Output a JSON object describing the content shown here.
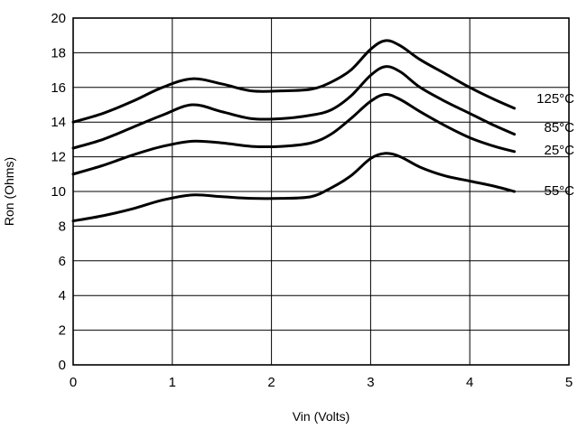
{
  "chart_data": {
    "type": "line",
    "title": "",
    "xlabel": "Vin (Volts)",
    "ylabel": "Ron (Ohms)",
    "xlim": [
      0,
      5
    ],
    "ylim": [
      0,
      20
    ],
    "xticks": [
      "0",
      "1",
      "2",
      "3",
      "4",
      "5"
    ],
    "yticks": [
      "0",
      "2",
      "4",
      "6",
      "8",
      "10",
      "12",
      "14",
      "16",
      "18",
      "20"
    ],
    "grid": true,
    "series": [
      {
        "name": "125°C",
        "x": [
          0,
          0.3,
          0.6,
          0.9,
          1.2,
          1.5,
          1.8,
          2.1,
          2.4,
          2.6,
          2.8,
          3.0,
          3.15,
          3.3,
          3.5,
          3.75,
          4.0,
          4.25,
          4.45
        ],
        "y": [
          14.0,
          14.5,
          15.2,
          16.0,
          16.5,
          16.2,
          15.8,
          15.8,
          15.9,
          16.3,
          17.0,
          18.2,
          18.7,
          18.4,
          17.6,
          16.8,
          16.0,
          15.3,
          14.8
        ]
      },
      {
        "name": "85°C",
        "x": [
          0,
          0.3,
          0.6,
          0.9,
          1.2,
          1.5,
          1.8,
          2.1,
          2.4,
          2.6,
          2.8,
          3.0,
          3.15,
          3.3,
          3.5,
          3.75,
          4.0,
          4.25,
          4.45
        ],
        "y": [
          12.5,
          13.0,
          13.7,
          14.4,
          15.0,
          14.6,
          14.2,
          14.2,
          14.4,
          14.7,
          15.5,
          16.7,
          17.2,
          16.9,
          16.0,
          15.2,
          14.5,
          13.8,
          13.3
        ]
      },
      {
        "name": "25°C",
        "x": [
          0,
          0.3,
          0.6,
          0.9,
          1.2,
          1.5,
          1.8,
          2.1,
          2.4,
          2.6,
          2.8,
          3.0,
          3.15,
          3.3,
          3.5,
          3.75,
          4.0,
          4.25,
          4.45
        ],
        "y": [
          11.0,
          11.5,
          12.1,
          12.6,
          12.9,
          12.8,
          12.6,
          12.6,
          12.8,
          13.3,
          14.2,
          15.2,
          15.6,
          15.3,
          14.6,
          13.8,
          13.1,
          12.6,
          12.3
        ]
      },
      {
        "name": "–55°C",
        "x": [
          0,
          0.3,
          0.6,
          0.9,
          1.2,
          1.5,
          1.8,
          2.1,
          2.4,
          2.6,
          2.8,
          3.0,
          3.15,
          3.3,
          3.5,
          3.75,
          4.0,
          4.25,
          4.45
        ],
        "y": [
          8.3,
          8.6,
          9.0,
          9.5,
          9.8,
          9.7,
          9.6,
          9.6,
          9.7,
          10.2,
          10.9,
          11.9,
          12.2,
          12.0,
          11.4,
          10.9,
          10.6,
          10.3,
          10.0
        ]
      }
    ]
  }
}
